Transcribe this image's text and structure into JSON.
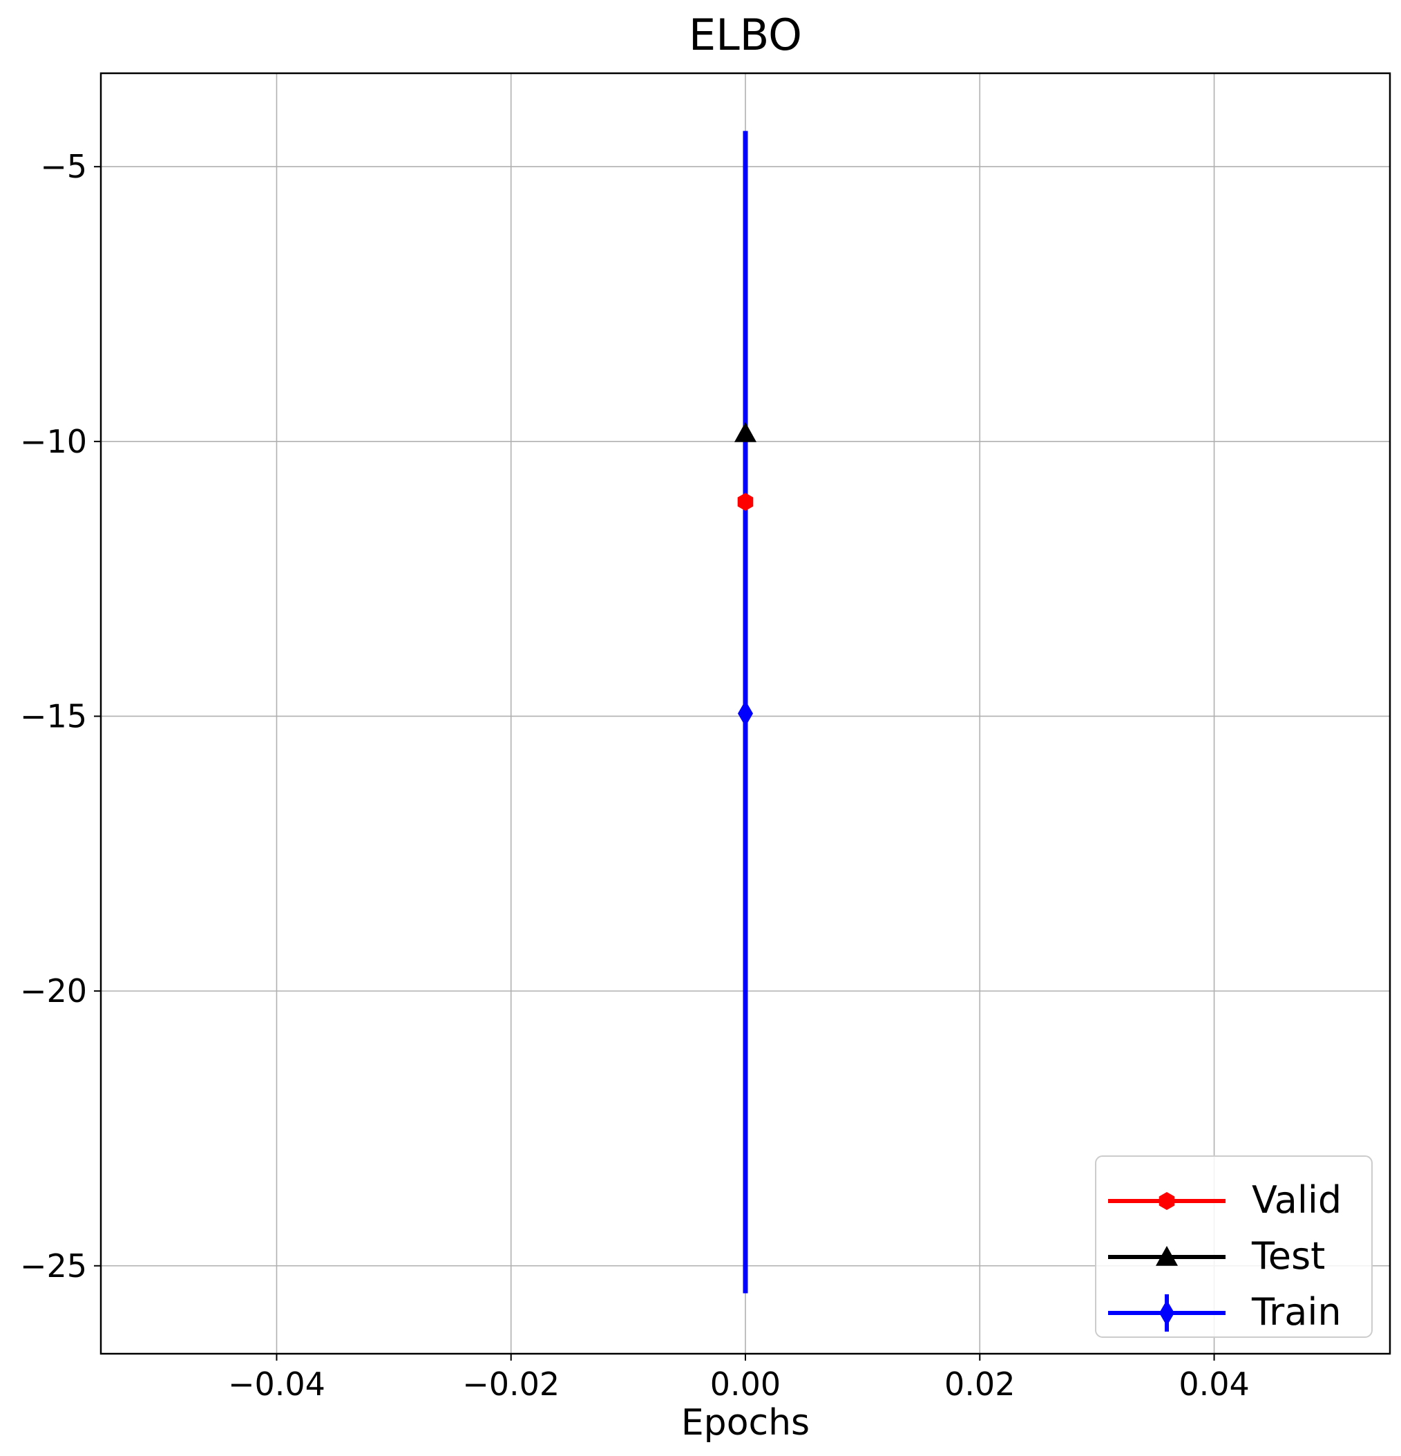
{
  "chart_data": {
    "type": "line",
    "title": "ELBO",
    "xlabel": "Epochs",
    "ylabel": "",
    "xlim": [
      -0.055,
      0.055
    ],
    "ylim": [
      -26.6,
      -3.3
    ],
    "x_ticks": [
      -0.04,
      -0.02,
      0.0,
      0.02,
      0.04
    ],
    "x_tick_labels": [
      "−0.04",
      "−0.02",
      "0.00",
      "0.02",
      "0.04"
    ],
    "y_ticks": [
      -5,
      -10,
      -15,
      -20,
      -25
    ],
    "y_tick_labels": [
      "−5",
      "−10",
      "−15",
      "−20",
      "−25"
    ],
    "grid": true,
    "legend_position": "lower-right",
    "series": [
      {
        "name": "Valid",
        "color": "#ff0000",
        "marker": "hexagon",
        "x": [
          0.0
        ],
        "y": [
          -11.1
        ]
      },
      {
        "name": "Test",
        "color": "#000000",
        "marker": "triangle-up",
        "x": [
          0.0
        ],
        "y": [
          -9.85
        ]
      },
      {
        "name": "Train",
        "color": "#0000ff",
        "marker": "thin-diamond",
        "x": [
          0.0
        ],
        "y": [
          -14.95
        ],
        "yerr_low": [
          -25.5
        ],
        "yerr_high": [
          -4.35
        ]
      }
    ]
  }
}
